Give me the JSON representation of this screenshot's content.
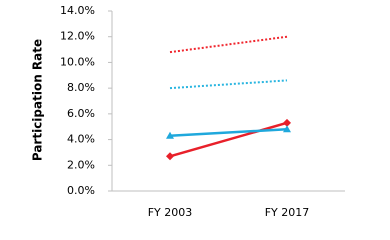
{
  "chart_data": {
    "type": "line",
    "y_label": "Participation Rate",
    "categories": [
      "FY 2003",
      "FY 2017"
    ],
    "series": [
      {
        "color": "#e8202a",
        "style": "solid",
        "marker": "diamond",
        "values": [
          2.7,
          5.3
        ]
      },
      {
        "color": "#1fa8dc",
        "style": "solid",
        "marker": "triangle",
        "values": [
          4.3,
          4.8
        ]
      },
      {
        "color": "#f0262e",
        "style": "dotted",
        "values": [
          10.8,
          12.0
        ]
      },
      {
        "color": "#29b5e0",
        "style": "dotted",
        "values": [
          8.0,
          8.6
        ]
      }
    ],
    "ylim": [
      0,
      14
    ],
    "yticks": [
      {
        "value": 0,
        "label": "0.0%"
      },
      {
        "value": 2,
        "label": "2.0%"
      },
      {
        "value": 4,
        "label": "4.0%"
      },
      {
        "value": 6,
        "label": "6.0%"
      },
      {
        "value": 8,
        "label": "8.0%"
      },
      {
        "value": 10,
        "label": "10.0%"
      },
      {
        "value": 12,
        "label": "12.0%"
      },
      {
        "value": 14,
        "label": "14.0%"
      }
    ]
  }
}
